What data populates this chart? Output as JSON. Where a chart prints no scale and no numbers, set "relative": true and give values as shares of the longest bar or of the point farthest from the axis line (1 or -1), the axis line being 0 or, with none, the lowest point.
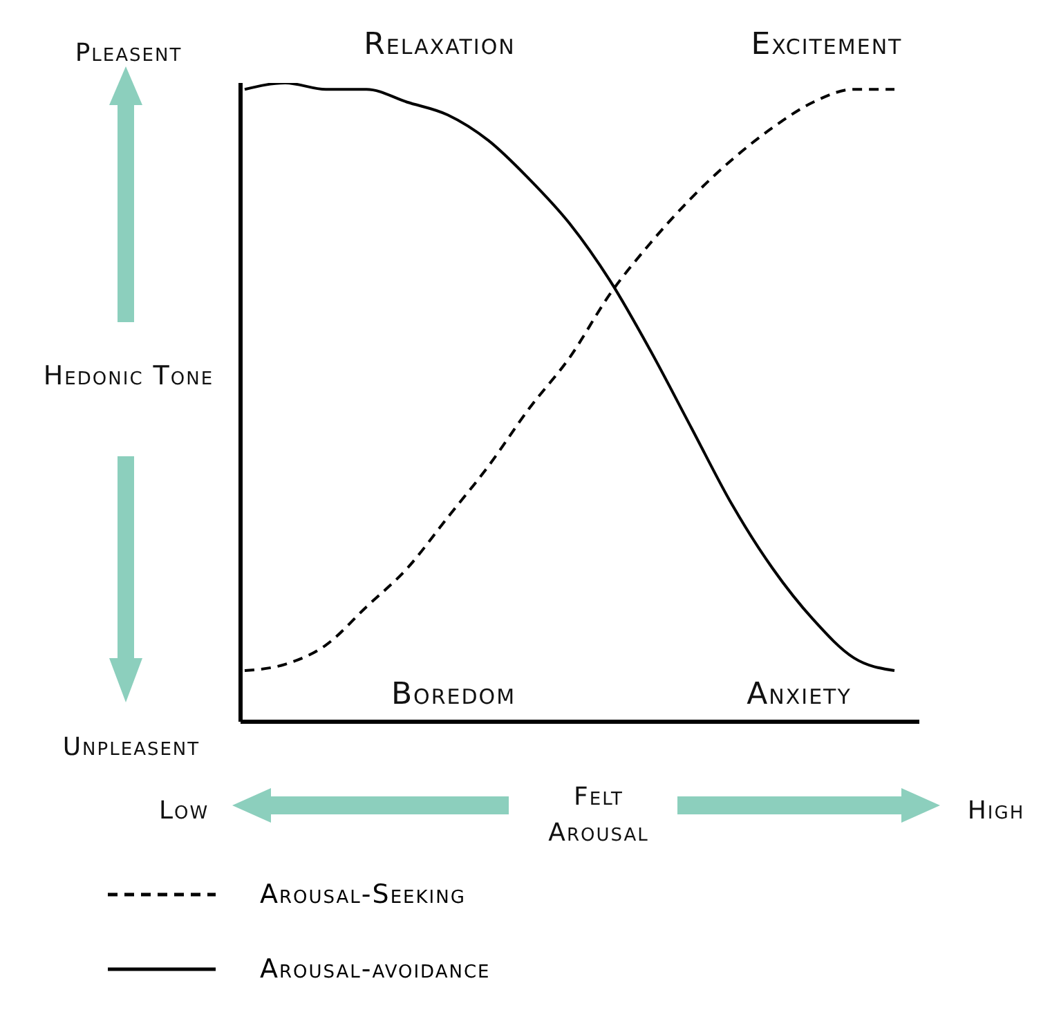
{
  "chart_data": {
    "type": "line",
    "relative": true,
    "xlabel": "Felt Arousal",
    "ylabel": "Hedonic Tone",
    "categories": [
      null,
      null,
      null,
      null,
      null,
      null,
      null,
      null,
      null,
      null,
      null,
      null,
      null,
      null,
      null,
      null,
      null
    ],
    "series": [
      {
        "name": "Arousal-Seeking",
        "color": "#000000",
        "line_style": "dashed",
        "values": [
          0.08,
          0.09,
          0.12,
          0.18,
          0.24,
          0.32,
          0.4,
          0.49,
          0.57,
          0.67,
          0.75,
          0.82,
          0.88,
          0.93,
          0.97,
          0.99,
          0.99
        ]
      },
      {
        "name": "Arousal-avoidance",
        "color": "#000000",
        "line_style": "solid",
        "values": [
          0.99,
          1.0,
          0.99,
          0.99,
          0.97,
          0.95,
          0.91,
          0.85,
          0.78,
          0.69,
          0.58,
          0.46,
          0.34,
          0.24,
          0.16,
          0.1,
          0.08
        ]
      }
    ],
    "annotations": [
      "Relaxation",
      "Excitement",
      "Boredom",
      "Anxiety",
      "Pleasent",
      "Unpleasent",
      "Low",
      "High"
    ],
    "legend": "bottom left"
  }
}
